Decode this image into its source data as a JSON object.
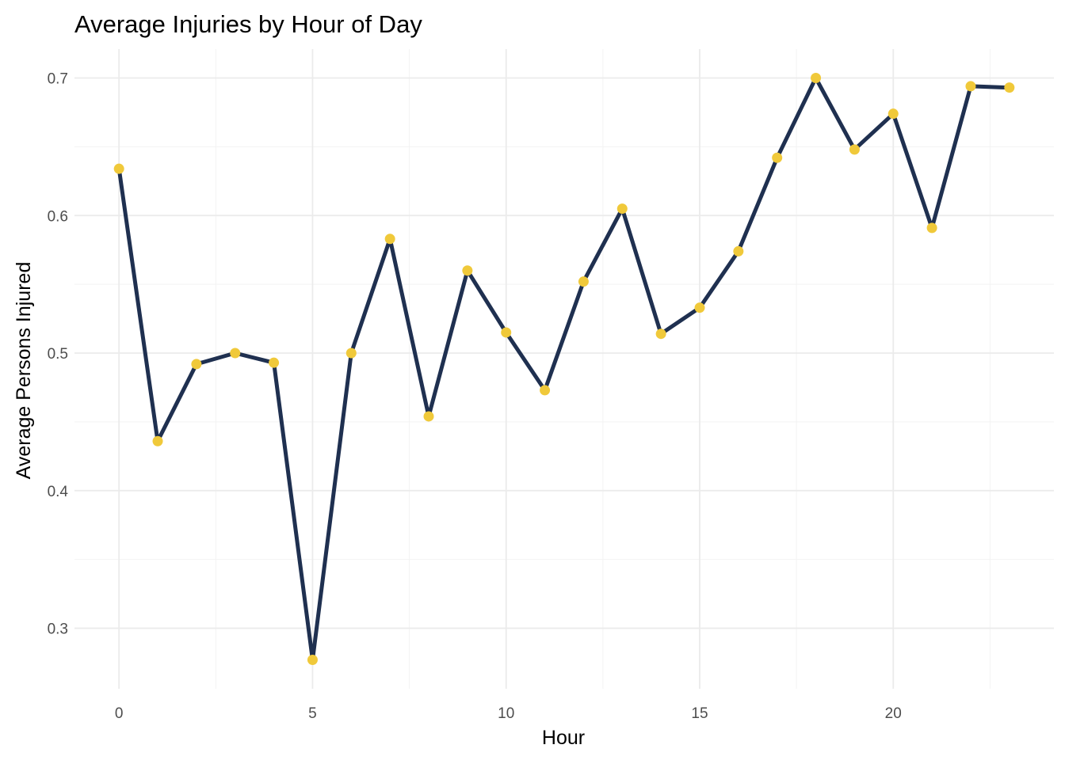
{
  "chart_data": {
    "type": "line",
    "title": "Average Injuries by Hour of Day",
    "xlabel": "Hour",
    "ylabel": "Average Persons Injured",
    "x": [
      0,
      1,
      2,
      3,
      4,
      5,
      6,
      7,
      8,
      9,
      10,
      11,
      12,
      13,
      14,
      15,
      16,
      17,
      18,
      19,
      20,
      21,
      22,
      23
    ],
    "y": [
      0.634,
      0.436,
      0.492,
      0.5,
      0.493,
      0.277,
      0.5,
      0.583,
      0.454,
      0.56,
      0.515,
      0.473,
      0.552,
      0.605,
      0.514,
      0.533,
      0.574,
      0.642,
      0.7,
      0.648,
      0.674,
      0.591,
      0.694,
      0.693
    ],
    "xticks": [
      0,
      5,
      10,
      15,
      20
    ],
    "xtick_labels": [
      "0",
      "5",
      "10",
      "15",
      "20"
    ],
    "yticks": [
      0.3,
      0.4,
      0.5,
      0.6,
      0.7
    ],
    "ytick_labels": [
      "0.3",
      "0.4",
      "0.5",
      "0.6",
      "0.7"
    ],
    "xlim": [
      -1.15,
      24.15
    ],
    "ylim": [
      0.256,
      0.721
    ],
    "grid": true,
    "line_color": "#1f3050",
    "point_color": "#f0c93a"
  }
}
